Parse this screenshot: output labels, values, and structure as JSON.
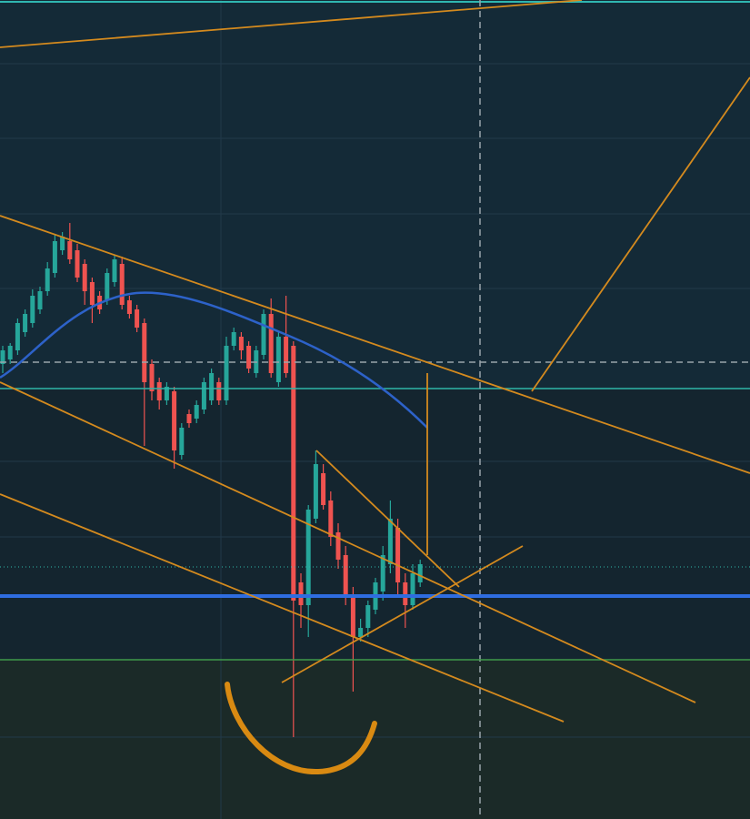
{
  "chart_data": {
    "type": "candlestick",
    "ylim": [
      0,
      90
    ],
    "up_color": "#26a69a",
    "down_color": "#ef5350",
    "series": {
      "open": [
        50,
        50.5,
        51.5,
        53.5,
        54.5,
        56,
        58,
        60,
        62.5,
        63.5,
        62.5,
        61,
        59,
        57.5,
        57,
        59,
        61,
        57,
        56,
        54.5,
        50,
        48,
        46,
        47,
        40,
        44.5,
        44,
        45,
        46,
        48,
        46,
        52,
        53,
        52,
        49,
        51,
        55.5,
        48,
        53,
        52,
        26,
        23.5,
        33,
        38,
        35,
        31.5,
        29,
        24.5,
        20,
        21,
        23,
        25,
        28,
        32,
        26,
        23.5,
        26
      ],
      "high": [
        52,
        52.3,
        55,
        56,
        58.2,
        58.5,
        61.2,
        64.2,
        64.5,
        65.5,
        63.2,
        61.5,
        59.5,
        58,
        60.5,
        62,
        61.8,
        57.5,
        56.5,
        55,
        50.5,
        48.5,
        48,
        47.5,
        43.5,
        45,
        46,
        48.5,
        49.5,
        48.5,
        53,
        54,
        53.5,
        52.5,
        52,
        56,
        57.2,
        53.5,
        57.5,
        52.5,
        27,
        34.5,
        40.5,
        39,
        36,
        32.5,
        30,
        25.5,
        22,
        24,
        26.5,
        30,
        35,
        33,
        27,
        28,
        28.5
      ],
      "low": [
        49,
        50,
        51,
        53,
        54,
        55.5,
        57.5,
        59.5,
        62,
        61,
        59,
        56.5,
        54.5,
        55.5,
        56.5,
        58.5,
        56,
        55,
        53.5,
        41,
        46,
        45,
        45.5,
        38.5,
        39.5,
        43,
        43.5,
        44.5,
        45.5,
        45.5,
        45.5,
        51.5,
        50.5,
        49,
        48.5,
        50.5,
        48.5,
        47.5,
        48.5,
        9,
        21,
        20,
        32.5,
        34,
        30,
        27.5,
        23.5,
        14,
        19.5,
        20,
        22.5,
        24,
        27,
        24.5,
        21,
        23,
        25.5
      ],
      "close": [
        51.5,
        52,
        54.5,
        55.5,
        57.5,
        58,
        60.5,
        63.5,
        64,
        61.5,
        59.5,
        58,
        56.5,
        56,
        60,
        61.5,
        56.5,
        55.5,
        54,
        48,
        47,
        46,
        47.5,
        40.5,
        43,
        43.5,
        45.5,
        48,
        49,
        46,
        52,
        53.5,
        51.5,
        49.5,
        51.5,
        55.5,
        49,
        53,
        49,
        24,
        23.5,
        34,
        39,
        34.5,
        31,
        28.5,
        24.5,
        20,
        21,
        23.5,
        26,
        29,
        33,
        26,
        23.5,
        27,
        28
      ]
    }
  }
}
